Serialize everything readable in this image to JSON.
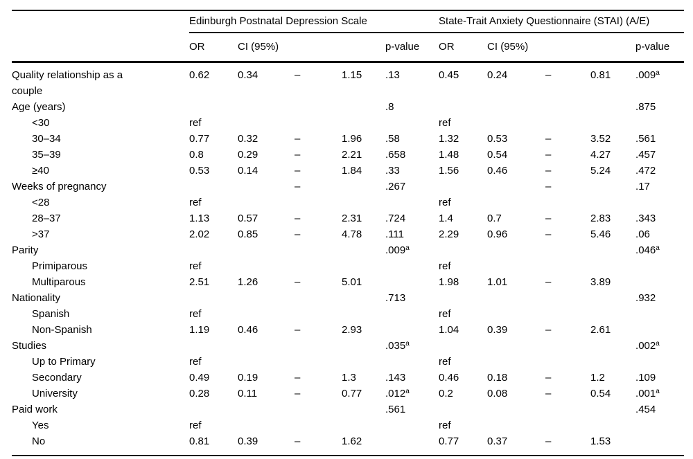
{
  "table": {
    "header": {
      "group_epds": "Edinburgh Postnatal Depression Scale",
      "group_stai": "State-Trait Anxiety Questionnaire (STAI) (A/E)",
      "col_or": "OR",
      "col_ci": "CI (95%)",
      "col_p": "p-value"
    },
    "rows": [
      {
        "label": "Quality relationship as a couple",
        "indent": false,
        "epds": {
          "or": "0.62",
          "lo": "0.34",
          "dash": "–",
          "hi": "1.15",
          "p": ".13",
          "p_sup": ""
        },
        "stai": {
          "or": "0.45",
          "lo": "0.24",
          "dash": "–",
          "hi": "0.81",
          "p": ".009",
          "p_sup": "a"
        }
      },
      {
        "label": "Age (years)",
        "indent": false,
        "epds": {
          "or": "",
          "lo": "",
          "dash": "",
          "hi": "",
          "p": ".8",
          "p_sup": ""
        },
        "stai": {
          "or": "",
          "lo": "",
          "dash": "",
          "hi": "",
          "p": ".875",
          "p_sup": ""
        }
      },
      {
        "label": "<30",
        "indent": true,
        "epds": {
          "or": "ref",
          "lo": "",
          "dash": "",
          "hi": "",
          "p": "",
          "p_sup": ""
        },
        "stai": {
          "or": "ref",
          "lo": "",
          "dash": "",
          "hi": "",
          "p": "",
          "p_sup": ""
        }
      },
      {
        "label": "30–34",
        "indent": true,
        "epds": {
          "or": "0.77",
          "lo": "0.32",
          "dash": "–",
          "hi": "1.96",
          "p": ".58",
          "p_sup": ""
        },
        "stai": {
          "or": "1.32",
          "lo": "0.53",
          "dash": "–",
          "hi": "3.52",
          "p": ".561",
          "p_sup": ""
        }
      },
      {
        "label": "35–39",
        "indent": true,
        "epds": {
          "or": "0.8",
          "lo": "0.29",
          "dash": "–",
          "hi": "2.21",
          "p": ".658",
          "p_sup": ""
        },
        "stai": {
          "or": "1.48",
          "lo": "0.54",
          "dash": "–",
          "hi": "4.27",
          "p": ".457",
          "p_sup": ""
        }
      },
      {
        "label": "≥40",
        "indent": true,
        "epds": {
          "or": "0.53",
          "lo": "0.14",
          "dash": "–",
          "hi": "1.84",
          "p": ".33",
          "p_sup": ""
        },
        "stai": {
          "or": "1.56",
          "lo": "0.46",
          "dash": "–",
          "hi": "5.24",
          "p": ".472",
          "p_sup": ""
        }
      },
      {
        "label": "Weeks of pregnancy",
        "indent": false,
        "epds": {
          "or": "",
          "lo": "",
          "dash": "–",
          "hi": "",
          "p": ".267",
          "p_sup": ""
        },
        "stai": {
          "or": "",
          "lo": "",
          "dash": "–",
          "hi": "",
          "p": ".17",
          "p_sup": ""
        }
      },
      {
        "label": "<28",
        "indent": true,
        "epds": {
          "or": "ref",
          "lo": "",
          "dash": "",
          "hi": "",
          "p": "",
          "p_sup": ""
        },
        "stai": {
          "or": "ref",
          "lo": "",
          "dash": "",
          "hi": "",
          "p": "",
          "p_sup": ""
        }
      },
      {
        "label": "28–37",
        "indent": true,
        "epds": {
          "or": "1.13",
          "lo": "0.57",
          "dash": "–",
          "hi": "2.31",
          "p": ".724",
          "p_sup": ""
        },
        "stai": {
          "or": "1.4",
          "lo": "0.7",
          "dash": "–",
          "hi": "2.83",
          "p": ".343",
          "p_sup": ""
        }
      },
      {
        "label": ">37",
        "indent": true,
        "epds": {
          "or": "2.02",
          "lo": "0.85",
          "dash": "–",
          "hi": "4.78",
          "p": ".111",
          "p_sup": ""
        },
        "stai": {
          "or": "2.29",
          "lo": "0.96",
          "dash": "–",
          "hi": "5.46",
          "p": ".06",
          "p_sup": ""
        }
      },
      {
        "label": "Parity",
        "indent": false,
        "epds": {
          "or": "",
          "lo": "",
          "dash": "",
          "hi": "",
          "p": ".009",
          "p_sup": "a"
        },
        "stai": {
          "or": "",
          "lo": "",
          "dash": "",
          "hi": "",
          "p": ".046",
          "p_sup": "a"
        }
      },
      {
        "label": "Primiparous",
        "indent": true,
        "epds": {
          "or": "ref",
          "lo": "",
          "dash": "",
          "hi": "",
          "p": "",
          "p_sup": ""
        },
        "stai": {
          "or": "ref",
          "lo": "",
          "dash": "",
          "hi": "",
          "p": "",
          "p_sup": ""
        }
      },
      {
        "label": "Multiparous",
        "indent": true,
        "epds": {
          "or": "2.51",
          "lo": "1.26",
          "dash": "–",
          "hi": "5.01",
          "p": "",
          "p_sup": ""
        },
        "stai": {
          "or": "1.98",
          "lo": "1.01",
          "dash": "–",
          "hi": "3.89",
          "p": "",
          "p_sup": ""
        }
      },
      {
        "label": "Nationality",
        "indent": false,
        "epds": {
          "or": "",
          "lo": "",
          "dash": "",
          "hi": "",
          "p": ".713",
          "p_sup": ""
        },
        "stai": {
          "or": "",
          "lo": "",
          "dash": "",
          "hi": "",
          "p": ".932",
          "p_sup": ""
        }
      },
      {
        "label": "Spanish",
        "indent": true,
        "epds": {
          "or": "ref",
          "lo": "",
          "dash": "",
          "hi": "",
          "p": "",
          "p_sup": ""
        },
        "stai": {
          "or": "ref",
          "lo": "",
          "dash": "",
          "hi": "",
          "p": "",
          "p_sup": ""
        }
      },
      {
        "label": "Non-Spanish",
        "indent": true,
        "epds": {
          "or": "1.19",
          "lo": "0.46",
          "dash": "–",
          "hi": "2.93",
          "p": "",
          "p_sup": ""
        },
        "stai": {
          "or": "1.04",
          "lo": "0.39",
          "dash": "–",
          "hi": "2.61",
          "p": "",
          "p_sup": ""
        }
      },
      {
        "label": "Studies",
        "indent": false,
        "epds": {
          "or": "",
          "lo": "",
          "dash": "",
          "hi": "",
          "p": ".035",
          "p_sup": "a"
        },
        "stai": {
          "or": "",
          "lo": "",
          "dash": "",
          "hi": "",
          "p": ".002",
          "p_sup": "a"
        }
      },
      {
        "label": "Up to Primary",
        "indent": true,
        "epds": {
          "or": "ref",
          "lo": "",
          "dash": "",
          "hi": "",
          "p": "",
          "p_sup": ""
        },
        "stai": {
          "or": "ref",
          "lo": "",
          "dash": "",
          "hi": "",
          "p": "",
          "p_sup": ""
        }
      },
      {
        "label": "Secondary",
        "indent": true,
        "epds": {
          "or": "0.49",
          "lo": "0.19",
          "dash": "–",
          "hi": "1.3",
          "p": ".143",
          "p_sup": ""
        },
        "stai": {
          "or": "0.46",
          "lo": "0.18",
          "dash": "–",
          "hi": "1.2",
          "p": ".109",
          "p_sup": ""
        }
      },
      {
        "label": "University",
        "indent": true,
        "epds": {
          "or": "0.28",
          "lo": "0.11",
          "dash": "–",
          "hi": "0.77",
          "p": ".012",
          "p_sup": "a"
        },
        "stai": {
          "or": "0.2",
          "lo": "0.08",
          "dash": "–",
          "hi": "0.54",
          "p": ".001",
          "p_sup": "a"
        }
      },
      {
        "label": "Paid work",
        "indent": false,
        "epds": {
          "or": "",
          "lo": "",
          "dash": "",
          "hi": "",
          "p": ".561",
          "p_sup": ""
        },
        "stai": {
          "or": "",
          "lo": "",
          "dash": "",
          "hi": "",
          "p": ".454",
          "p_sup": ""
        }
      },
      {
        "label": "Yes",
        "indent": true,
        "epds": {
          "or": "ref",
          "lo": "",
          "dash": "",
          "hi": "",
          "p": "",
          "p_sup": ""
        },
        "stai": {
          "or": "ref",
          "lo": "",
          "dash": "",
          "hi": "",
          "p": "",
          "p_sup": ""
        }
      },
      {
        "label": "No",
        "indent": true,
        "epds": {
          "or": "0.81",
          "lo": "0.39",
          "dash": "–",
          "hi": "1.62",
          "p": "",
          "p_sup": ""
        },
        "stai": {
          "or": "0.77",
          "lo": "0.37",
          "dash": "–",
          "hi": "1.53",
          "p": "",
          "p_sup": ""
        }
      }
    ]
  }
}
